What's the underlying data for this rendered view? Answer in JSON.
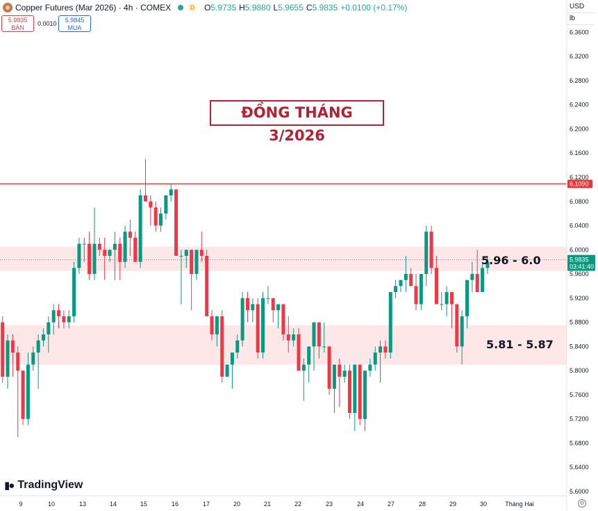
{
  "header": {
    "title": "Copper Futures (Mar 2026) · 4h · COMEX",
    "delay_badge": "D",
    "ohlc": [
      {
        "k": "O",
        "v": "5.9735"
      },
      {
        "k": "H",
        "v": "5.9880"
      },
      {
        "k": "L",
        "v": "5.9655"
      },
      {
        "k": "C",
        "v": "5.9835"
      },
      {
        "k": "",
        "v": "+0.0100 (+0.17%)"
      }
    ]
  },
  "quote": {
    "sell_price": "5.9835",
    "sell_label": "BÁN",
    "spread": "0.0010",
    "buy_price": "5.9845",
    "buy_label": "MUA"
  },
  "axis_units": {
    "currency": "USD",
    "unit": "lb"
  },
  "headline": "ĐỒNG THÁNG 3/2026",
  "zones": [
    {
      "label": "5.96 - 6.0",
      "low": 5.965,
      "high": 6.005
    },
    {
      "label": "5.81 - 5.87",
      "low": 5.81,
      "high": 5.875
    }
  ],
  "price_tags": {
    "resistance": {
      "value": 6.109,
      "text": "6.1090",
      "color": "#e53935"
    },
    "last": {
      "value": 5.9835,
      "text": "5.9835",
      "countdown": "03:41:40",
      "color": "#089981"
    }
  },
  "branding": "TradingView",
  "chart_data": {
    "type": "candlestick",
    "y_axis": {
      "min": 5.6,
      "max": 6.38,
      "ticks": [
        "6.3600",
        "6.3200",
        "6.2800",
        "6.2400",
        "6.2000",
        "6.1600",
        "6.1200",
        "6.0800",
        "6.0400",
        "6.0000",
        "5.9600",
        "5.9200",
        "5.8800",
        "5.8400",
        "5.8000",
        "5.7600",
        "5.7200",
        "5.6800",
        "5.6400",
        "5.6000"
      ]
    },
    "x_axis": {
      "ticks": [
        "9",
        "10",
        "13",
        "14",
        "15",
        "16",
        "17",
        "20",
        "21",
        "22",
        "23",
        "24",
        "27",
        "28",
        "29",
        "30",
        "Tháng Hai"
      ]
    },
    "candles": [
      [
        5.88,
        5.89,
        5.78,
        5.79
      ],
      [
        5.79,
        5.86,
        5.77,
        5.85
      ],
      [
        5.85,
        5.86,
        5.79,
        5.83
      ],
      [
        5.83,
        5.84,
        5.69,
        5.8
      ],
      [
        5.8,
        5.8,
        5.71,
        5.72
      ],
      [
        5.72,
        5.83,
        5.71,
        5.81
      ],
      [
        5.81,
        5.84,
        5.8,
        5.83
      ],
      [
        5.83,
        5.86,
        5.77,
        5.85
      ],
      [
        5.85,
        5.87,
        5.84,
        5.86
      ],
      [
        5.86,
        5.89,
        5.83,
        5.88
      ],
      [
        5.88,
        5.91,
        5.86,
        5.9
      ],
      [
        5.9,
        5.91,
        5.87,
        5.89
      ],
      [
        5.89,
        5.9,
        5.87,
        5.88
      ],
      [
        5.88,
        5.9,
        5.87,
        5.89
      ],
      [
        5.89,
        5.98,
        5.88,
        5.97
      ],
      [
        5.97,
        6.02,
        5.96,
        6.01
      ],
      [
        6.01,
        6.02,
        5.98,
        6.01
      ],
      [
        6.01,
        6.03,
        5.95,
        5.96
      ],
      [
        5.96,
        6.07,
        5.95,
        6.01
      ],
      [
        6.01,
        6.02,
        5.99,
        6.0
      ],
      [
        6.0,
        6.02,
        5.95,
        5.99
      ],
      [
        5.99,
        6.0,
        5.98,
        6.0
      ],
      [
        6.0,
        6.03,
        5.95,
        6.01
      ],
      [
        6.01,
        6.02,
        5.95,
        5.98
      ],
      [
        5.98,
        6.04,
        5.97,
        6.03
      ],
      [
        6.03,
        6.05,
        5.99,
        6.02
      ],
      [
        6.02,
        6.03,
        5.98,
        5.98
      ],
      [
        5.98,
        6.1,
        5.97,
        6.09
      ],
      [
        6.09,
        6.15,
        6.08,
        6.08
      ],
      [
        6.08,
        6.09,
        6.04,
        6.07
      ],
      [
        6.07,
        6.08,
        6.03,
        6.04
      ],
      [
        6.04,
        6.07,
        6.03,
        6.06
      ],
      [
        6.06,
        6.09,
        6.05,
        6.09
      ],
      [
        6.09,
        6.11,
        6.08,
        6.1
      ],
      [
        6.1,
        6.1,
        5.99,
        5.99
      ],
      [
        5.99,
        6.0,
        5.91,
        5.99
      ],
      [
        5.99,
        6.0,
        5.97,
        6.0
      ],
      [
        6.0,
        6.0,
        5.9,
        5.96
      ],
      [
        5.96,
        6.0,
        5.95,
        6.0
      ],
      [
        6.0,
        6.03,
        5.98,
        5.99
      ],
      [
        5.99,
        6.0,
        5.89,
        5.89
      ],
      [
        5.89,
        5.9,
        5.85,
        5.86
      ],
      [
        5.86,
        5.89,
        5.84,
        5.89
      ],
      [
        5.89,
        5.9,
        5.78,
        5.79
      ],
      [
        5.79,
        5.81,
        5.79,
        5.81
      ],
      [
        5.81,
        5.83,
        5.77,
        5.83
      ],
      [
        5.83,
        5.86,
        5.82,
        5.85
      ],
      [
        5.85,
        5.93,
        5.84,
        5.92
      ],
      [
        5.92,
        5.93,
        5.88,
        5.9
      ],
      [
        5.9,
        5.92,
        5.88,
        5.91
      ],
      [
        5.91,
        5.92,
        5.82,
        5.83
      ],
      [
        5.83,
        5.93,
        5.82,
        5.92
      ],
      [
        5.92,
        5.94,
        5.91,
        5.92
      ],
      [
        5.92,
        5.92,
        5.88,
        5.9
      ],
      [
        5.9,
        5.91,
        5.87,
        5.91
      ],
      [
        5.91,
        5.91,
        5.85,
        5.86
      ],
      [
        5.86,
        5.89,
        5.83,
        5.85
      ],
      [
        5.85,
        5.87,
        5.84,
        5.86
      ],
      [
        5.86,
        5.87,
        5.8,
        5.8
      ],
      [
        5.8,
        5.82,
        5.75,
        5.81
      ],
      [
        5.81,
        5.84,
        5.78,
        5.84
      ],
      [
        5.84,
        5.88,
        5.8,
        5.88
      ],
      [
        5.88,
        5.88,
        5.82,
        5.84
      ],
      [
        5.84,
        5.88,
        5.83,
        5.84
      ],
      [
        5.84,
        5.84,
        5.76,
        5.77
      ],
      [
        5.77,
        5.81,
        5.73,
        5.81
      ],
      [
        5.81,
        5.82,
        5.74,
        5.79
      ],
      [
        5.79,
        5.81,
        5.78,
        5.8
      ],
      [
        5.8,
        5.81,
        5.72,
        5.73
      ],
      [
        5.73,
        5.81,
        5.7,
        5.81
      ],
      [
        5.81,
        5.81,
        5.71,
        5.72
      ],
      [
        5.72,
        5.8,
        5.7,
        5.8
      ],
      [
        5.8,
        5.82,
        5.79,
        5.81
      ],
      [
        5.81,
        5.84,
        5.8,
        5.83
      ],
      [
        5.83,
        5.85,
        5.78,
        5.84
      ],
      [
        5.84,
        5.85,
        5.82,
        5.83
      ],
      [
        5.83,
        5.93,
        5.82,
        5.93
      ],
      [
        5.93,
        5.95,
        5.92,
        5.94
      ],
      [
        5.94,
        5.95,
        5.93,
        5.95
      ],
      [
        5.95,
        5.99,
        5.93,
        5.96
      ],
      [
        5.96,
        5.97,
        5.94,
        5.94
      ],
      [
        5.94,
        5.96,
        5.9,
        5.91
      ],
      [
        5.91,
        5.96,
        5.9,
        5.96
      ],
      [
        5.96,
        6.04,
        5.94,
        6.03
      ],
      [
        6.03,
        6.04,
        5.96,
        5.97
      ],
      [
        5.97,
        5.99,
        5.91,
        5.91
      ],
      [
        5.91,
        5.93,
        5.9,
        5.91
      ],
      [
        5.91,
        5.94,
        5.89,
        5.93
      ],
      [
        5.93,
        5.93,
        5.87,
        5.91
      ],
      [
        5.91,
        5.91,
        5.83,
        5.84
      ],
      [
        5.84,
        5.9,
        5.81,
        5.89
      ],
      [
        5.89,
        5.95,
        5.87,
        5.95
      ],
      [
        5.95,
        5.98,
        5.93,
        5.96
      ],
      [
        5.96,
        6.0,
        5.93,
        5.93
      ],
      [
        5.93,
        5.98,
        5.93,
        5.97
      ],
      [
        5.97,
        5.99,
        5.96,
        5.98
      ]
    ]
  }
}
